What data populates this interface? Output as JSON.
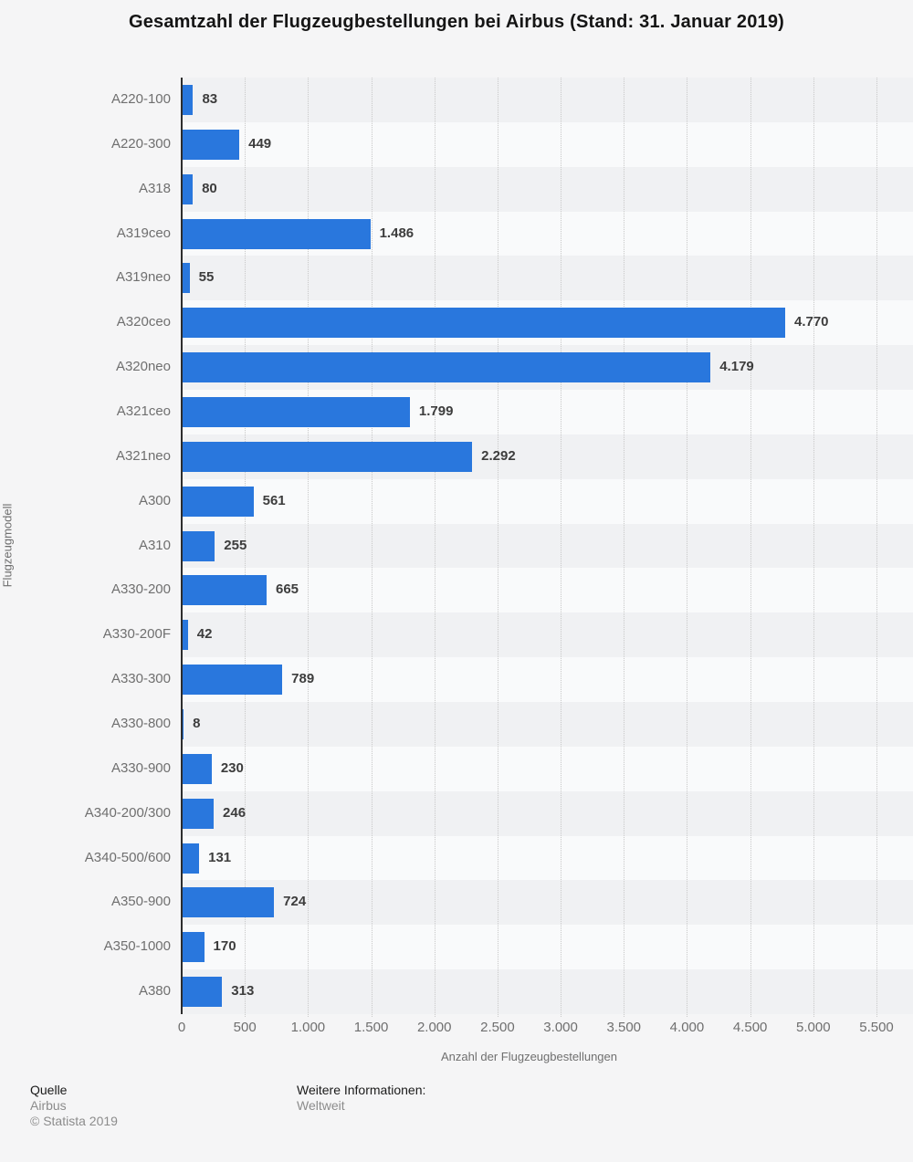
{
  "title": "Gesamtzahl der Flugzeugbestellungen bei Airbus (Stand: 31. Januar 2019)",
  "chart_data": {
    "type": "bar",
    "orientation": "horizontal",
    "categories": [
      "A220-100",
      "A220-300",
      "A318",
      "A319ceo",
      "A319neo",
      "A320ceo",
      "A320neo",
      "A321ceo",
      "A321neo",
      "A300",
      "A310",
      "A330-200",
      "A330-200F",
      "A330-300",
      "A330-800",
      "A330-900",
      "A340-200/300",
      "A340-500/600",
      "A350-900",
      "A350-1000",
      "A380"
    ],
    "values": [
      83,
      449,
      80,
      1486,
      55,
      4770,
      4179,
      1799,
      2292,
      561,
      255,
      665,
      42,
      789,
      8,
      230,
      246,
      131,
      724,
      170,
      313
    ],
    "value_labels": [
      "83",
      "449",
      "80",
      "1.486",
      "55",
      "4.770",
      "4.179",
      "1.799",
      "2.292",
      "561",
      "255",
      "665",
      "42",
      "789",
      "8",
      "230",
      "246",
      "131",
      "724",
      "170",
      "313"
    ],
    "title": "Gesamtzahl der Flugzeugbestellungen bei Airbus (Stand: 31. Januar 2019)",
    "xlabel": "Anzahl der Flugzeugbestellungen",
    "ylabel": "Flugzeugmodell",
    "xlim": [
      0,
      5500
    ],
    "x_ticks": [
      "0",
      "500",
      "1.000",
      "1.500",
      "2.000",
      "2.500",
      "3.000",
      "3.500",
      "4.000",
      "4.500",
      "5.000",
      "5.500"
    ],
    "x_tick_values": [
      0,
      500,
      1000,
      1500,
      2000,
      2500,
      3000,
      3500,
      4000,
      4500,
      5000,
      5500
    ],
    "grid": "vertical-dotted",
    "legend": "none",
    "bar_color": "#2977dd",
    "band_colors": [
      "#f0f1f3",
      "#f9fafb"
    ],
    "background_color": "#f5f5f6"
  },
  "footer": {
    "source_heading": "Quelle",
    "source": "Airbus",
    "copyright": "© Statista 2019",
    "info_heading": "Weitere Informationen:",
    "info": "Weltweit"
  }
}
